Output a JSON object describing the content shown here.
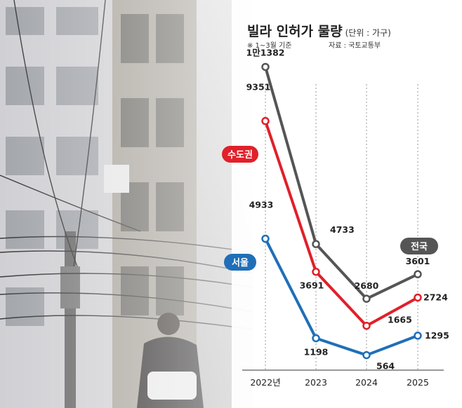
{
  "header": {
    "title": "빌라 인허가 물량",
    "unit": "(단위 : 가구)",
    "note": "※ 1~3월 기준",
    "source": "자료 : 국토교통부"
  },
  "colors": {
    "nationwide": "#555555",
    "capital": "#e0202a",
    "seoul": "#1f6fb8"
  },
  "chart_data": {
    "type": "line",
    "title": "빌라 인허가 물량",
    "unit": "(단위 : 가구)",
    "categories": [
      "2022년",
      "2023",
      "2024",
      "2025"
    ],
    "ylim": [
      0,
      12000
    ],
    "series": [
      {
        "name": "전국",
        "values": [
          11382,
          4733,
          2680,
          3601
        ],
        "labels": [
          "1만1382",
          "4733",
          "2680",
          "3601"
        ]
      },
      {
        "name": "수도권",
        "values": [
          9351,
          3691,
          1665,
          2724
        ],
        "labels": [
          "9351",
          "3691",
          "1665",
          "2724"
        ]
      },
      {
        "name": "서울",
        "values": [
          4933,
          1198,
          564,
          1295
        ],
        "labels": [
          "4933",
          "1198",
          "564",
          "1295"
        ]
      }
    ]
  }
}
